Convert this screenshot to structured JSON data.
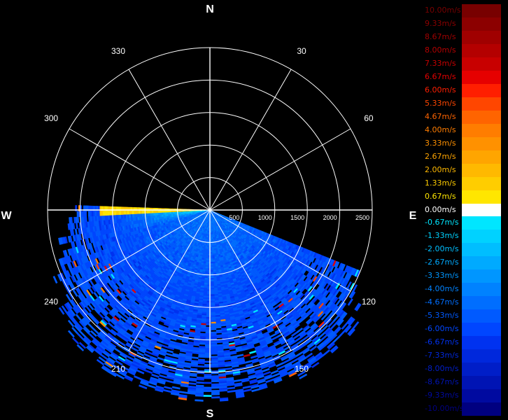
{
  "chart_data": {
    "type": "heatmap",
    "subtype": "polar radar velocity (PPI sector)",
    "compass": {
      "north": "N",
      "south": "S",
      "east": "E",
      "west": "W"
    },
    "bearing_labels": [
      "30",
      "60",
      "120",
      "150",
      "210",
      "240",
      "300",
      "330"
    ],
    "range_labels": [
      "500",
      "1000",
      "1500",
      "2000",
      "2500"
    ],
    "range_max": 2500,
    "range_rings": [
      500,
      1000,
      1500,
      2000,
      2500
    ],
    "spoke_interval_deg": 30,
    "data_sector_deg": [
      90,
      270
    ],
    "grid": true,
    "dominant_velocity": "-4.00m/s to -6.00m/s",
    "positive_region": "near west horizon, azimuth 260-270, range 0-1600",
    "legend_position": "right",
    "legend": [
      {
        "label": "10.00m/s",
        "color": "#780000"
      },
      {
        "label": "9.33m/s",
        "color": "#8c0000"
      },
      {
        "label": "8.67m/s",
        "color": "#a00000"
      },
      {
        "label": "8.00m/s",
        "color": "#b40000"
      },
      {
        "label": "7.33m/s",
        "color": "#c80000"
      },
      {
        "label": "6.67m/s",
        "color": "#e60000"
      },
      {
        "label": "6.00m/s",
        "color": "#ff1e00"
      },
      {
        "label": "5.33m/s",
        "color": "#ff4600"
      },
      {
        "label": "4.67m/s",
        "color": "#ff6400"
      },
      {
        "label": "4.00m/s",
        "color": "#ff7d00"
      },
      {
        "label": "3.33m/s",
        "color": "#ff9100"
      },
      {
        "label": "2.67m/s",
        "color": "#ffa500"
      },
      {
        "label": "2.00m/s",
        "color": "#ffb900"
      },
      {
        "label": "1.33m/s",
        "color": "#ffcd00"
      },
      {
        "label": "0.67m/s",
        "color": "#ffe600"
      },
      {
        "label": "0.00m/s",
        "color": "#ffffff"
      },
      {
        "label": "-0.67m/s",
        "color": "#00e6ff"
      },
      {
        "label": "-1.33m/s",
        "color": "#00d2ff"
      },
      {
        "label": "-2.00m/s",
        "color": "#00beff"
      },
      {
        "label": "-2.67m/s",
        "color": "#00aaff"
      },
      {
        "label": "-3.33m/s",
        "color": "#0096ff"
      },
      {
        "label": "-4.00m/s",
        "color": "#0082ff"
      },
      {
        "label": "-4.67m/s",
        "color": "#006eff"
      },
      {
        "label": "-5.33m/s",
        "color": "#005aff"
      },
      {
        "label": "-6.00m/s",
        "color": "#0046ff"
      },
      {
        "label": "-6.67m/s",
        "color": "#0032f0"
      },
      {
        "label": "-7.33m/s",
        "color": "#0028dc"
      },
      {
        "label": "-8.00m/s",
        "color": "#001ec8"
      },
      {
        "label": "-8.67m/s",
        "color": "#0014b4"
      },
      {
        "label": "-9.33m/s",
        "color": "#000aa0"
      },
      {
        "label": "-10.00m/s",
        "color": "#000080"
      }
    ]
  }
}
